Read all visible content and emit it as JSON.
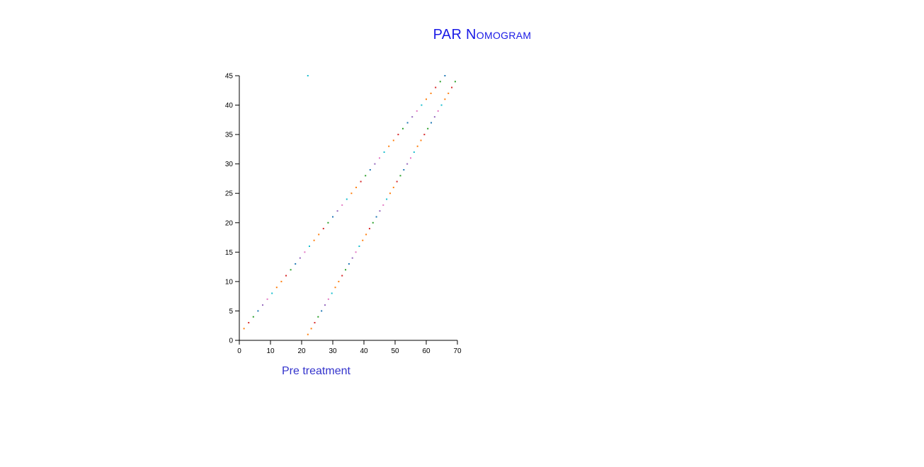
{
  "chart_data": {
    "type": "scatter",
    "title": "PAR Nomogram",
    "xlabel": "Pre treatment",
    "ylabel": "",
    "xlim": [
      0,
      70
    ],
    "ylim": [
      0,
      45
    ],
    "xticks": [
      0,
      10,
      20,
      30,
      40,
      50,
      60,
      70
    ],
    "yticks": [
      0,
      5,
      10,
      15,
      20,
      25,
      30,
      35,
      40,
      45
    ],
    "grid": false,
    "legend": "none",
    "point_colors": [
      "#ff7f0e",
      "#d62728",
      "#2ca02c",
      "#1f77b4",
      "#9467bd",
      "#e377c2",
      "#17becf",
      "#ff7f0e"
    ],
    "series": [
      {
        "x": [
          1.5,
          3,
          4.5,
          6,
          7.5,
          9,
          10.5,
          12,
          13.5,
          15,
          16.5,
          18,
          19.5,
          21,
          22.5,
          24,
          25.5,
          27,
          28.5,
          30,
          31.5,
          33,
          34.5,
          36,
          37.5,
          39,
          40.5,
          42,
          43.5,
          45,
          46.5,
          48,
          49.5,
          51,
          52.5,
          54,
          55.5,
          57,
          58.5,
          60,
          61.5,
          63,
          64.5,
          66
        ],
        "y": [
          2,
          3,
          4,
          5,
          6,
          7,
          8,
          9,
          10,
          11,
          12,
          13,
          14,
          15,
          16,
          17,
          18,
          19,
          20,
          21,
          22,
          23,
          24,
          25,
          26,
          27,
          28,
          29,
          30,
          31,
          32,
          33,
          34,
          35,
          36,
          37,
          38,
          39,
          40,
          41,
          42,
          43,
          44,
          45
        ]
      },
      {
        "x": [
          22,
          23.1,
          24.2,
          25.3,
          26.4,
          27.5,
          28.6,
          29.7,
          30.8,
          31.9,
          33,
          34.1,
          35.2,
          36.3,
          37.4,
          38.5,
          39.6,
          40.7,
          41.8,
          42.9,
          44,
          45.1,
          46.2,
          47.3,
          48.4,
          49.5,
          50.6,
          51.7,
          52.8,
          53.9,
          55,
          56.1,
          57.2,
          58.3,
          59.4,
          60.5,
          61.6,
          62.7,
          63.8,
          64.9,
          66,
          67.1,
          68.2,
          69.3
        ],
        "y": [
          1,
          2,
          3,
          4,
          5,
          6,
          7,
          8,
          9,
          10,
          11,
          12,
          13,
          14,
          15,
          16,
          17,
          18,
          19,
          20,
          21,
          22,
          23,
          24,
          25,
          26,
          27,
          28,
          29,
          30,
          31,
          32,
          33,
          34,
          35,
          36,
          37,
          38,
          39,
          40,
          41,
          42,
          43,
          44
        ]
      },
      {
        "x": [
          22
        ],
        "y": [
          45
        ]
      }
    ]
  }
}
